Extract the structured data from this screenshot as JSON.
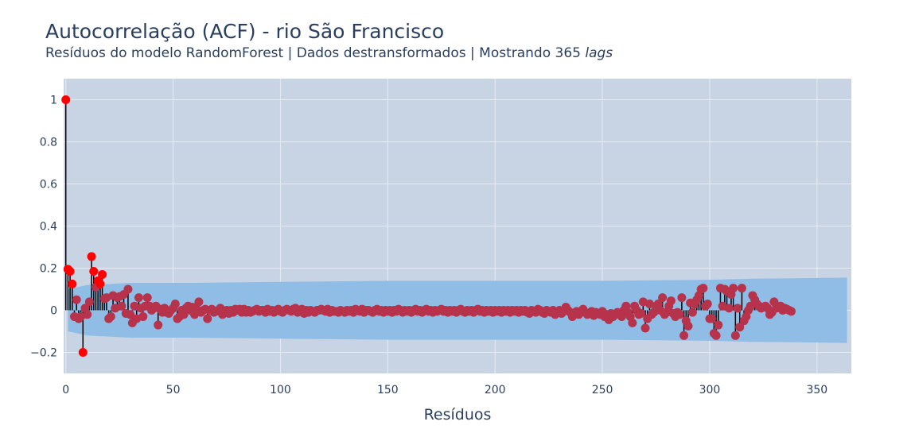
{
  "title": "Autocorrelação (ACF) - rio São Francisco",
  "subtitle_main": "Resíduos do modelo RandomForest | Dados destransformados | Mostrando 365 ",
  "subtitle_em": "lags",
  "colors": {
    "plot_bg": "#c8d4e3",
    "grid": "#e6ecf4",
    "confidence_band": "#90bde6",
    "stem": "#000000",
    "marker_highlight": "#ff0000",
    "marker": "#b7334b"
  },
  "chart_data": {
    "type": "scatter",
    "title": "Autocorrelação (ACF) - rio São Francisco",
    "subtitle": "Resíduos do modelo RandomForest | Dados destransformados | Mostrando 365 lags",
    "xlabel": "Resíduos",
    "ylabel": "",
    "xlim": [
      -1,
      366
    ],
    "ylim": [
      -0.3,
      1.1
    ],
    "x_ticks": [
      0,
      50,
      100,
      150,
      200,
      250,
      300,
      350
    ],
    "x_tick_labels": [
      "0",
      "50",
      "100",
      "150",
      "200",
      "250",
      "300",
      "350"
    ],
    "y_ticks": [
      -0.2,
      0,
      0.2,
      0.4,
      0.6,
      0.8,
      1
    ],
    "y_tick_labels": [
      "−0.2",
      "0",
      "0.2",
      "0.4",
      "0.6",
      "0.8",
      "1"
    ],
    "grid": true,
    "legend": false,
    "confidence_band": {
      "x": [
        1,
        10,
        30,
        60,
        100,
        150,
        200,
        250,
        300,
        320,
        340,
        364
      ],
      "upper": [
        0.1,
        0.12,
        0.13,
        0.13,
        0.135,
        0.14,
        0.14,
        0.14,
        0.145,
        0.15,
        0.152,
        0.155
      ],
      "lower": [
        -0.1,
        -0.12,
        -0.13,
        -0.13,
        -0.135,
        -0.14,
        -0.14,
        -0.14,
        -0.145,
        -0.15,
        -0.152,
        -0.155
      ]
    },
    "highlighted_lags": [
      0,
      1,
      2,
      3,
      8,
      12,
      13,
      15,
      16,
      17
    ],
    "acf": [
      1.0,
      0.195,
      0.185,
      0.125,
      -0.03,
      0.05,
      -0.04,
      -0.03,
      -0.2,
      0.01,
      -0.02,
      0.04,
      0.255,
      0.185,
      0.11,
      0.14,
      0.125,
      0.17,
      0.055,
      0.06,
      -0.04,
      -0.03,
      0.07,
      0.01,
      0.06,
      0.065,
      0.02,
      0.075,
      -0.015,
      0.1,
      -0.02,
      -0.06,
      0.02,
      -0.04,
      0.06,
      0.01,
      -0.03,
      0.02,
      0.06,
      0.02,
      0.0,
      0.01,
      0.02,
      -0.07,
      0.005,
      -0.01,
      0.01,
      -0.01,
      -0.015,
      0.0,
      0.01,
      0.03,
      -0.04,
      -0.03,
      0.0,
      -0.02,
      0.01,
      0.02,
      0.0,
      0.015,
      -0.02,
      0.005,
      0.04,
      -0.01,
      0.0,
      0.005,
      -0.04,
      0.0,
      0.005,
      -0.01,
      -0.005,
      0.0,
      0.01,
      -0.02,
      -0.01,
      0.0,
      -0.015,
      0.0,
      -0.01,
      0.005,
      0.0,
      0.005,
      -0.01,
      0.005,
      -0.01,
      0.0,
      -0.01,
      -0.005,
      0.0,
      0.005,
      -0.005,
      0.0,
      0.0,
      -0.01,
      0.005,
      -0.005,
      0.0,
      -0.01,
      0.0,
      0.005,
      -0.005,
      -0.01,
      0.0,
      0.005,
      0.0,
      -0.005,
      0.005,
      0.01,
      -0.01,
      0.0,
      0.005,
      -0.015,
      0.0,
      -0.01,
      0.0,
      -0.005,
      -0.01,
      0.0,
      0.0,
      0.005,
      0.0,
      -0.005,
      0.005,
      -0.01,
      0.0,
      -0.005,
      -0.005,
      -0.01,
      0.0,
      -0.005,
      -0.01,
      0.0,
      -0.005,
      0.0,
      -0.01,
      0.005,
      0.0,
      -0.005,
      0.005,
      -0.01,
      0.0,
      0.0,
      -0.005,
      -0.01,
      0.0,
      0.005,
      -0.005,
      0.0,
      -0.01,
      0.0,
      -0.005,
      0.0,
      -0.01,
      0.0,
      -0.005,
      0.005,
      0.0,
      -0.01,
      0.0,
      -0.005,
      0.0,
      -0.01,
      0.0,
      0.005,
      -0.005,
      0.0,
      -0.01,
      0.0,
      0.005,
      -0.005,
      0.0,
      -0.01,
      0.0,
      -0.005,
      0.0,
      0.005,
      -0.005,
      0.0,
      -0.01,
      0.0,
      -0.005,
      0.0,
      -0.01,
      0.0,
      0.005,
      -0.005,
      -0.01,
      0.0,
      -0.005,
      0.0,
      -0.01,
      0.0,
      0.005,
      -0.005,
      0.0,
      -0.01,
      0.0,
      -0.005,
      0.0,
      -0.01,
      0.0,
      -0.005,
      0.0,
      -0.01,
      0.0,
      -0.005,
      0.0,
      -0.01,
      0.0,
      -0.005,
      0.0,
      -0.01,
      0.0,
      -0.005,
      0.0,
      -0.01,
      -0.015,
      0.0,
      -0.005,
      -0.01,
      0.005,
      0.0,
      -0.01,
      -0.015,
      0.0,
      -0.005,
      -0.01,
      0.0,
      -0.02,
      -0.01,
      0.0,
      -0.015,
      -0.005,
      0.015,
      0.0,
      -0.01,
      -0.03,
      -0.015,
      -0.005,
      -0.02,
      -0.01,
      0.005,
      -0.01,
      -0.02,
      -0.015,
      -0.005,
      -0.025,
      -0.01,
      -0.015,
      -0.02,
      -0.005,
      -0.03,
      -0.02,
      -0.045,
      -0.015,
      -0.03,
      -0.02,
      -0.01,
      -0.02,
      -0.03,
      0.0,
      0.02,
      -0.01,
      -0.03,
      -0.06,
      0.02,
      0.0,
      -0.02,
      -0.015,
      0.04,
      -0.085,
      -0.04,
      0.03,
      -0.02,
      -0.01,
      0.02,
      0.03,
      0.0,
      0.06,
      -0.02,
      -0.01,
      0.02,
      0.045,
      -0.015,
      -0.03,
      -0.01,
      -0.02,
      0.06,
      -0.12,
      -0.05,
      -0.075,
      0.035,
      -0.01,
      0.03,
      0.05,
      0.07,
      0.1,
      0.105,
      0.02,
      0.03,
      -0.04,
      -0.04,
      -0.11,
      -0.12,
      -0.07,
      0.105,
      0.02,
      0.1,
      0.09,
      0.01,
      0.075,
      0.105,
      -0.12,
      0.01,
      -0.08,
      0.105,
      -0.05,
      -0.03,
      0.0,
      0.02,
      0.07,
      0.05,
      0.03,
      0.02,
      0.01,
      0.015,
      0.02,
      0.01,
      -0.02,
      -0.01,
      0.04,
      0.01,
      0.015,
      0.02,
      0.0,
      0.01,
      0.005,
      0.0,
      -0.005
    ]
  }
}
